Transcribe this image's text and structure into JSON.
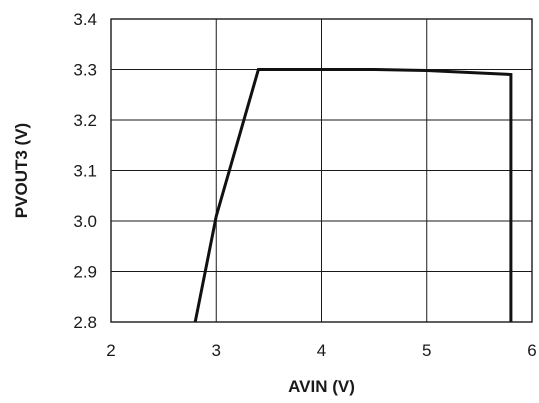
{
  "chart_data": {
    "type": "line",
    "title": "",
    "xlabel": "AVIN (V)",
    "ylabel": "PVOUT3 (V)",
    "xlim": [
      2,
      6
    ],
    "ylim": [
      2.8,
      3.4
    ],
    "x_ticks": [
      "2",
      "3",
      "4",
      "5",
      "6"
    ],
    "y_ticks": [
      "3.4",
      "3.3",
      "3.2",
      "3.1",
      "3.0",
      "2.9",
      "2.8"
    ],
    "grid": true,
    "series": [
      {
        "x": [
          2.8,
          3.0,
          3.4,
          4.5,
          5.0,
          5.8,
          5.8
        ],
        "y": [
          2.8,
          3.01,
          3.3,
          3.3,
          3.298,
          3.29,
          2.8
        ]
      }
    ]
  }
}
